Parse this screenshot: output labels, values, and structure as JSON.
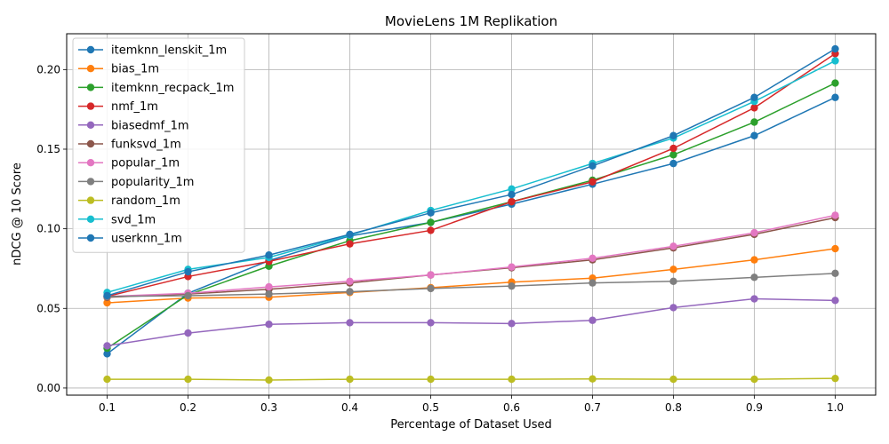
{
  "chart_data": {
    "type": "line",
    "title": "MovieLens 1M Replikation",
    "xlabel": "Percentage of Dataset Used",
    "ylabel": "nDCG @ 10 Score",
    "x": [
      0.1,
      0.2,
      0.3,
      0.4,
      0.5,
      0.6,
      0.7,
      0.8,
      0.9,
      1.0
    ],
    "x_ticks": [
      "0.1",
      "0.2",
      "0.3",
      "0.4",
      "0.5",
      "0.6",
      "0.7",
      "0.8",
      "0.9",
      "1.0"
    ],
    "y_ticks": [
      "0.00",
      "0.05",
      "0.10",
      "0.15",
      "0.20"
    ],
    "xlim": [
      0.05,
      1.05
    ],
    "ylim": [
      -0.0045,
      0.2225
    ],
    "grid": true,
    "legend_position": "top-left",
    "series": [
      {
        "name": "itemknn_lenskit_1m",
        "color": "#1f77b4",
        "values": [
          0.0215,
          0.0595,
          0.08,
          0.0955,
          0.104,
          0.1155,
          0.128,
          0.141,
          0.1585,
          0.1825
        ]
      },
      {
        "name": "bias_1m",
        "color": "#ff7f0e",
        "values": [
          0.0535,
          0.0565,
          0.057,
          0.06,
          0.063,
          0.0665,
          0.069,
          0.0745,
          0.0805,
          0.0875
        ]
      },
      {
        "name": "itemknn_recpack_1m",
        "color": "#2ca02c",
        "values": [
          0.025,
          0.0585,
          0.0765,
          0.0925,
          0.104,
          0.117,
          0.1305,
          0.1465,
          0.167,
          0.1915
        ]
      },
      {
        "name": "nmf_1m",
        "color": "#d62728",
        "values": [
          0.0575,
          0.07,
          0.0795,
          0.0905,
          0.099,
          0.117,
          0.1295,
          0.1505,
          0.176,
          0.21
        ]
      },
      {
        "name": "biasedmf_1m",
        "color": "#9467bd",
        "values": [
          0.0265,
          0.0345,
          0.04,
          0.041,
          0.041,
          0.0405,
          0.0425,
          0.0505,
          0.056,
          0.055
        ]
      },
      {
        "name": "funksvd_1m",
        "color": "#8c564b",
        "values": [
          0.057,
          0.059,
          0.062,
          0.066,
          0.071,
          0.0755,
          0.0805,
          0.088,
          0.0965,
          0.107
        ]
      },
      {
        "name": "popular_1m",
        "color": "#e377c2",
        "values": [
          0.0575,
          0.0595,
          0.0635,
          0.067,
          0.071,
          0.076,
          0.0815,
          0.089,
          0.0975,
          0.1085
        ]
      },
      {
        "name": "popularity_1m",
        "color": "#7f7f7f",
        "values": [
          0.0575,
          0.058,
          0.059,
          0.0605,
          0.0625,
          0.064,
          0.066,
          0.067,
          0.0695,
          0.072
        ]
      },
      {
        "name": "random_1m",
        "color": "#bcbd22",
        "values": [
          0.0055,
          0.0055,
          0.005,
          0.0055,
          0.0055,
          0.0055,
          0.0057,
          0.0055,
          0.0055,
          0.006
        ]
      },
      {
        "name": "svd_1m",
        "color": "#17becf",
        "values": [
          0.06,
          0.0745,
          0.082,
          0.096,
          0.1115,
          0.125,
          0.141,
          0.157,
          0.18,
          0.2055
        ]
      },
      {
        "name": "userknn_1m",
        "color": "#1f77b4",
        "values": [
          0.058,
          0.073,
          0.0835,
          0.0965,
          0.11,
          0.1215,
          0.1395,
          0.1585,
          0.1825,
          0.213
        ]
      }
    ]
  }
}
